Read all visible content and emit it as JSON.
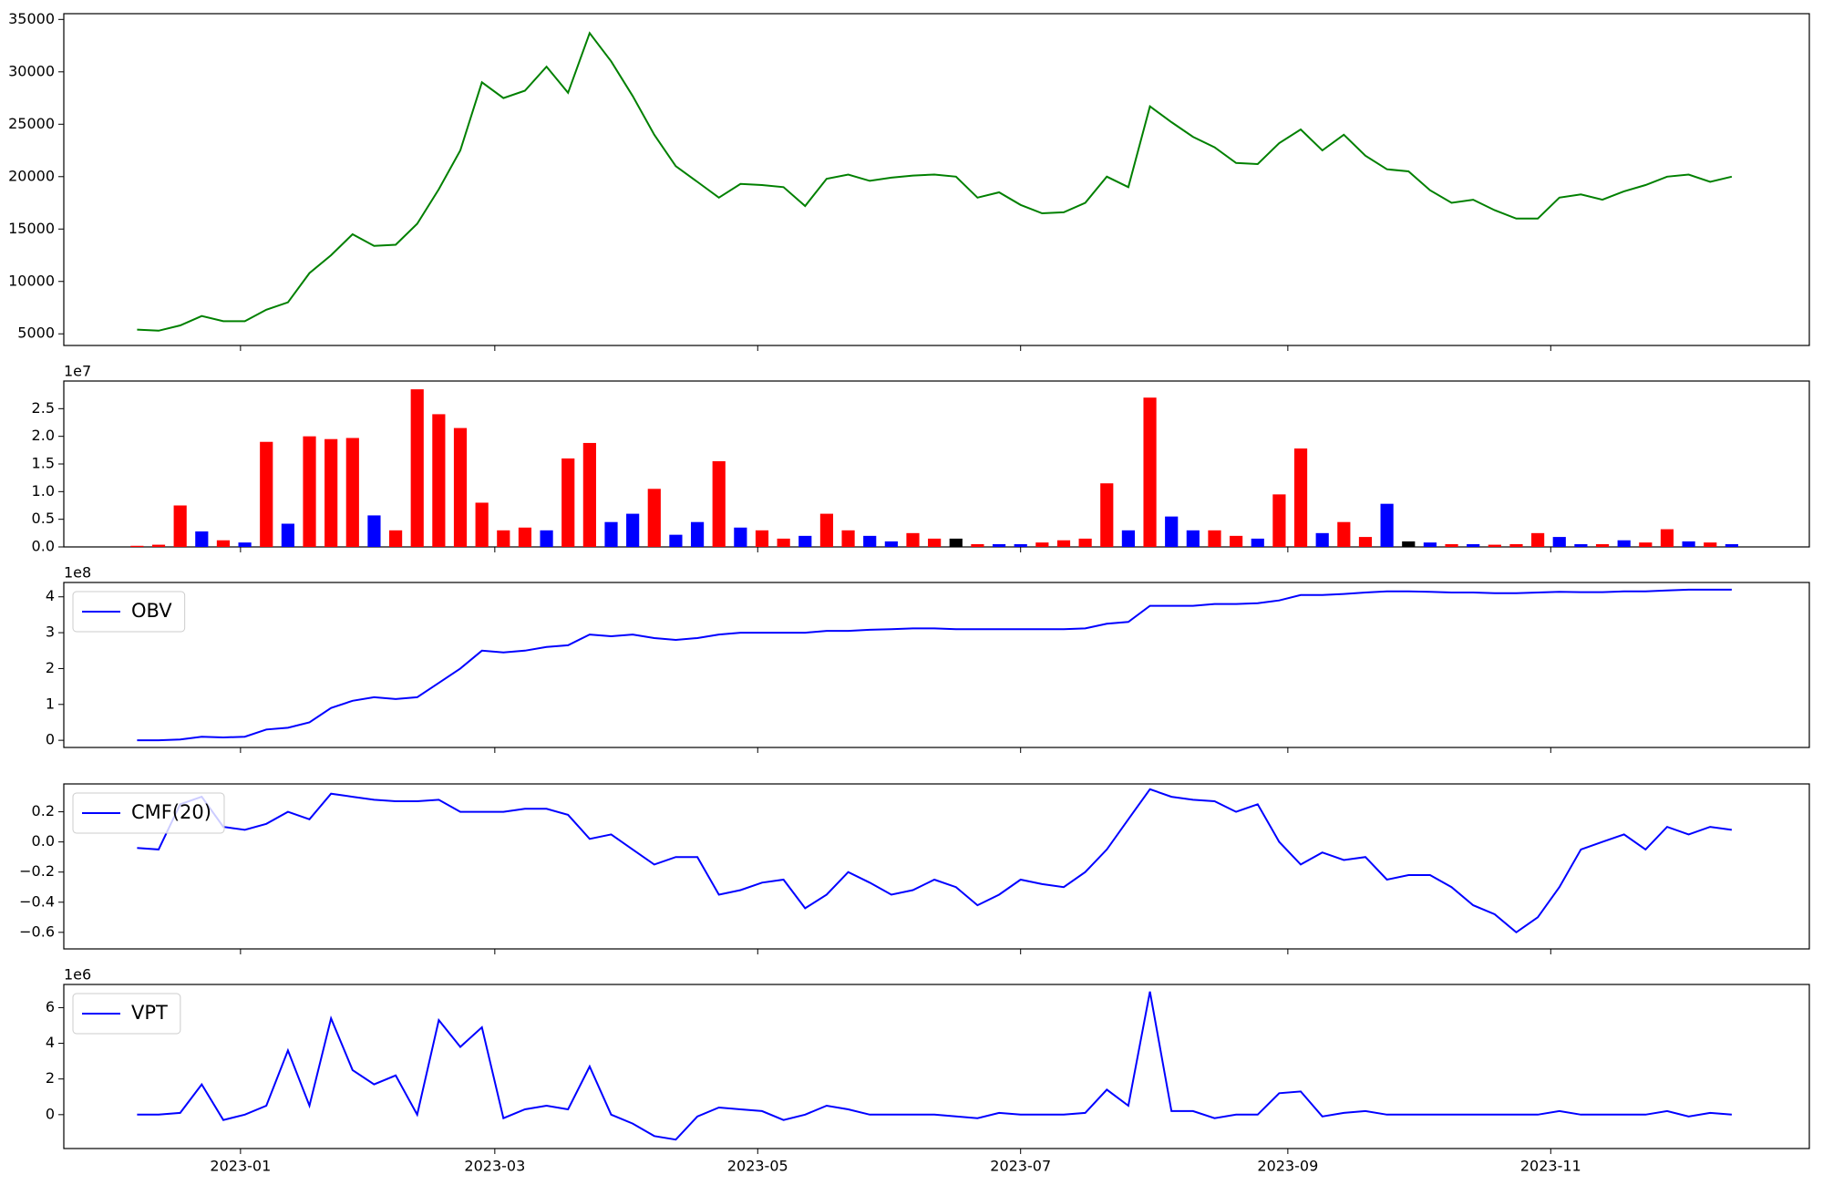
{
  "chart_data": {
    "type": "panels",
    "xlim": [
      "2022-11-21",
      "2023-12-31"
    ],
    "xticks": [
      {
        "value": "2023-01-01",
        "label": "2023-01"
      },
      {
        "value": "2023-03-01",
        "label": "2023-03"
      },
      {
        "value": "2023-05-01",
        "label": "2023-05"
      },
      {
        "value": "2023-07-01",
        "label": "2023-07"
      },
      {
        "value": "2023-09-01",
        "label": "2023-09"
      },
      {
        "value": "2023-11-01",
        "label": "2023-11"
      }
    ],
    "x": [
      "2022-12-08",
      "2022-12-13",
      "2022-12-18",
      "2022-12-23",
      "2022-12-28",
      "2023-01-02",
      "2023-01-07",
      "2023-01-12",
      "2023-01-17",
      "2023-01-22",
      "2023-01-27",
      "2023-02-01",
      "2023-02-06",
      "2023-02-11",
      "2023-02-16",
      "2023-02-21",
      "2023-02-26",
      "2023-03-03",
      "2023-03-08",
      "2023-03-13",
      "2023-03-18",
      "2023-03-23",
      "2023-03-28",
      "2023-04-02",
      "2023-04-07",
      "2023-04-12",
      "2023-04-17",
      "2023-04-22",
      "2023-04-27",
      "2023-05-02",
      "2023-05-07",
      "2023-05-12",
      "2023-05-17",
      "2023-05-22",
      "2023-05-27",
      "2023-06-01",
      "2023-06-06",
      "2023-06-11",
      "2023-06-16",
      "2023-06-21",
      "2023-06-26",
      "2023-07-01",
      "2023-07-06",
      "2023-07-11",
      "2023-07-16",
      "2023-07-21",
      "2023-07-26",
      "2023-07-31",
      "2023-08-05",
      "2023-08-10",
      "2023-08-15",
      "2023-08-20",
      "2023-08-25",
      "2023-08-30",
      "2023-09-04",
      "2023-09-09",
      "2023-09-14",
      "2023-09-19",
      "2023-09-24",
      "2023-09-29",
      "2023-10-04",
      "2023-10-09",
      "2023-10-14",
      "2023-10-19",
      "2023-10-24",
      "2023-10-29",
      "2023-11-03",
      "2023-11-08",
      "2023-11-13",
      "2023-11-18",
      "2023-11-23",
      "2023-11-28",
      "2023-12-03",
      "2023-12-08",
      "2023-12-13"
    ],
    "panels": [
      {
        "type": "line",
        "ylim": [
          3890,
          35550
        ],
        "yticks": [
          5000,
          10000,
          15000,
          20000,
          25000,
          30000,
          35000
        ],
        "series": [
          {
            "color": "#008000",
            "values": [
              5400,
              5300,
              5800,
              6700,
              6200,
              6200,
              7300,
              8000,
              10800,
              12500,
              14500,
              13400,
              13500,
              15500,
              18800,
              22500,
              29000,
              27500,
              28200,
              30500,
              28000,
              33700,
              31000,
              27700,
              24000,
              21000,
              19500,
              18000,
              19300,
              19200,
              19000,
              17200,
              19800,
              20200,
              19600,
              19900,
              20100,
              20200,
              20000,
              18000,
              18500,
              17300,
              16500,
              16600,
              17500,
              20000,
              19000,
              26700,
              25200,
              23800,
              22800,
              21300,
              21200,
              23200,
              24500,
              22500,
              24000,
              22000,
              20700,
              20500,
              18700,
              17500,
              17800,
              16800,
              16000,
              16000,
              18000,
              18300,
              17800,
              18600,
              19200,
              20000,
              20200,
              19500,
              20000
            ]
          }
        ]
      },
      {
        "type": "bar",
        "ylim": [
          0,
          3.0
        ],
        "y_offset_label": "1e7",
        "yticks": [
          {
            "value": 0,
            "label": "0.0"
          },
          0.5,
          {
            "value": 1,
            "label": "1.0"
          },
          1.5,
          {
            "value": 2,
            "label": "2.0"
          },
          2.5
        ],
        "values": [
          0.02,
          0.04,
          0.75,
          0.28,
          0.12,
          0.08,
          1.9,
          0.42,
          2.0,
          1.95,
          1.97,
          0.57,
          0.3,
          2.85,
          2.4,
          2.15,
          0.8,
          0.3,
          0.35,
          0.3,
          1.6,
          1.88,
          0.45,
          0.6,
          1.05,
          0.22,
          0.45,
          1.55,
          0.35,
          0.3,
          0.15,
          0.2,
          0.6,
          0.3,
          0.2,
          0.1,
          0.25,
          0.15,
          0.15,
          0.05,
          0.05,
          0.05,
          0.08,
          0.12,
          0.15,
          1.15,
          0.3,
          2.7,
          0.55,
          0.3,
          0.3,
          0.2,
          0.15,
          0.95,
          1.78,
          0.25,
          0.45,
          0.18,
          0.78,
          0.1,
          0.08,
          0.05,
          0.05,
          0.04,
          0.05,
          0.25,
          0.18,
          0.05,
          0.05,
          0.12,
          0.08,
          0.32,
          0.1,
          0.08,
          0.05
        ],
        "colors": [
          "red",
          "red",
          "red",
          "blue",
          "red",
          "blue",
          "red",
          "blue",
          "red",
          "red",
          "red",
          "blue",
          "red",
          "red",
          "red",
          "red",
          "red",
          "red",
          "red",
          "blue",
          "red",
          "red",
          "blue",
          "blue",
          "red",
          "blue",
          "blue",
          "red",
          "blue",
          "red",
          "red",
          "blue",
          "red",
          "red",
          "blue",
          "blue",
          "red",
          "red",
          "black",
          "red",
          "blue",
          "blue",
          "red",
          "red",
          "red",
          "red",
          "blue",
          "red",
          "blue",
          "blue",
          "red",
          "red",
          "blue",
          "red",
          "red",
          "blue",
          "red",
          "red",
          "blue",
          "black",
          "blue",
          "red",
          "blue",
          "red",
          "red",
          "red",
          "blue",
          "blue",
          "red",
          "blue",
          "red",
          "red",
          "blue",
          "red",
          "blue"
        ]
      },
      {
        "type": "line",
        "ylim": [
          -0.2,
          4.4
        ],
        "y_offset_label": "1e8",
        "yticks": [
          0,
          1,
          2,
          3,
          4
        ],
        "legend": "upper left",
        "series": [
          {
            "name": "OBV",
            "color": "#0000ff",
            "values": [
              0,
              0,
              0.02,
              0.1,
              0.08,
              0.1,
              0.3,
              0.35,
              0.5,
              0.9,
              1.1,
              1.2,
              1.15,
              1.2,
              1.6,
              2.0,
              2.5,
              2.45,
              2.5,
              2.6,
              2.65,
              2.95,
              2.9,
              2.95,
              2.85,
              2.8,
              2.85,
              2.95,
              3.0,
              3.0,
              3.0,
              3.0,
              3.05,
              3.05,
              3.08,
              3.1,
              3.12,
              3.12,
              3.1,
              3.1,
              3.1,
              3.1,
              3.1,
              3.1,
              3.12,
              3.25,
              3.3,
              3.75,
              3.75,
              3.75,
              3.8,
              3.8,
              3.82,
              3.9,
              4.05,
              4.05,
              4.08,
              4.12,
              4.15,
              4.15,
              4.14,
              4.12,
              4.12,
              4.1,
              4.1,
              4.12,
              4.14,
              4.13,
              4.13,
              4.15,
              4.15,
              4.18,
              4.2,
              4.2,
              4.2
            ]
          }
        ]
      },
      {
        "type": "line",
        "ylim": [
          -0.71,
          0.385
        ],
        "legend": "upper left",
        "yticks": [
          {
            "value": -0.6,
            "label": "−0.6"
          },
          {
            "value": -0.4,
            "label": "−0.4"
          },
          {
            "value": -0.2,
            "label": "−0.2"
          },
          {
            "value": 0,
            "label": "0.0"
          },
          0.2
        ],
        "series": [
          {
            "name": "CMF(20)",
            "color": "#0000ff",
            "values": [
              -0.04,
              -0.05,
              0.25,
              0.3,
              0.1,
              0.08,
              0.12,
              0.2,
              0.15,
              0.32,
              0.3,
              0.28,
              0.27,
              0.27,
              0.28,
              0.2,
              0.2,
              0.2,
              0.22,
              0.22,
              0.18,
              0.02,
              0.05,
              -0.05,
              -0.15,
              -0.1,
              -0.1,
              -0.35,
              -0.32,
              -0.27,
              -0.25,
              -0.44,
              -0.35,
              -0.2,
              -0.27,
              -0.35,
              -0.32,
              -0.25,
              -0.3,
              -0.42,
              -0.35,
              -0.25,
              -0.28,
              -0.3,
              -0.2,
              -0.05,
              0.15,
              0.35,
              0.3,
              0.28,
              0.27,
              0.2,
              0.25,
              0.0,
              -0.15,
              -0.07,
              -0.12,
              -0.1,
              -0.25,
              -0.22,
              -0.22,
              -0.3,
              -0.42,
              -0.48,
              -0.6,
              -0.5,
              -0.3,
              -0.05,
              0.0,
              0.05,
              -0.05,
              0.1,
              0.05,
              0.1,
              0.08
            ]
          }
        ]
      },
      {
        "type": "line",
        "ylim": [
          -1.9,
          7.3
        ],
        "y_offset_label": "1e6",
        "yticks": [
          0,
          2,
          4,
          6
        ],
        "legend": "upper left",
        "series": [
          {
            "name": "VPT",
            "color": "#0000ff",
            "values": [
              0,
              0,
              0.1,
              1.7,
              -0.3,
              0,
              0.5,
              3.6,
              0.5,
              5.4,
              2.5,
              1.7,
              2.2,
              0,
              5.3,
              3.8,
              4.9,
              -0.2,
              0.3,
              0.5,
              0.3,
              2.7,
              0,
              -0.5,
              -1.2,
              -1.4,
              -0.1,
              0.4,
              0.3,
              0.2,
              -0.3,
              0,
              0.5,
              0.3,
              0,
              0,
              0,
              0,
              -0.1,
              -0.2,
              0.1,
              0,
              0,
              0,
              0.1,
              1.4,
              0.5,
              6.9,
              0.2,
              0.2,
              -0.2,
              0,
              0,
              1.2,
              1.3,
              -0.1,
              0.1,
              0.2,
              0,
              0,
              0,
              0,
              0,
              0,
              0,
              0,
              0.2,
              0,
              0,
              0,
              0,
              0.2,
              -0.1,
              0.1,
              0
            ]
          }
        ]
      }
    ]
  }
}
